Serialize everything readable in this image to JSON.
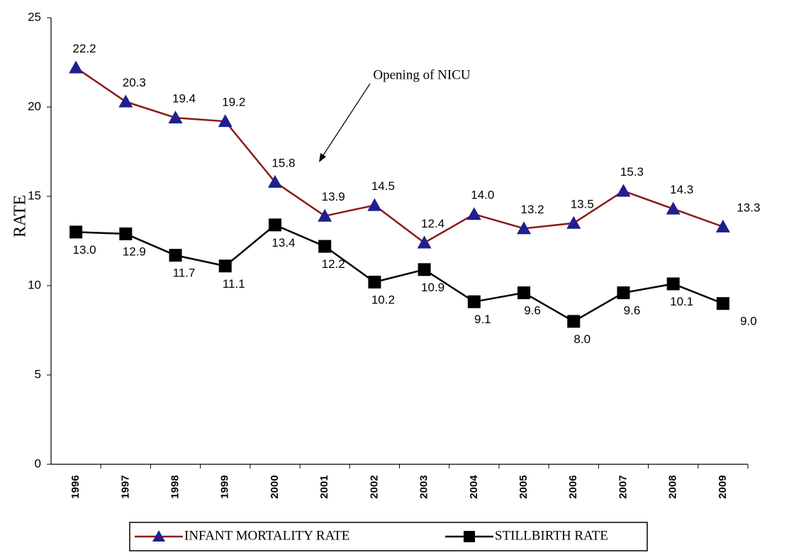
{
  "chart_data": {
    "type": "line",
    "y_label": "RATE",
    "annotation": "Opening of NICU",
    "categories": [
      "1996",
      "1997",
      "1998",
      "1999",
      "2000",
      "2001",
      "2002",
      "2003",
      "2004",
      "2005",
      "2006",
      "2007",
      "2008",
      "2009"
    ],
    "series": [
      {
        "name": "INFANT MORTALITY RATE",
        "color": "#8b1a1a",
        "marker_color": "#1f1f8f",
        "marker": "triangle",
        "values": [
          22.2,
          20.3,
          19.4,
          19.2,
          15.8,
          13.9,
          14.5,
          12.4,
          14.0,
          13.2,
          13.5,
          15.3,
          14.3,
          13.3
        ],
        "value_labels": [
          "22.2",
          "20.3",
          "19.4",
          "19.2",
          "15.8",
          "13.9",
          "14.5",
          "12.4",
          "14.0",
          "13.2",
          "13.5",
          "15.3",
          "14.3",
          "13.3"
        ]
      },
      {
        "name": "STILLBIRTH  RATE",
        "color": "#000000",
        "marker_color": "#000000",
        "marker": "square",
        "values": [
          13.0,
          12.9,
          11.7,
          11.1,
          13.4,
          12.2,
          10.2,
          10.9,
          9.1,
          9.6,
          8.0,
          9.6,
          10.1,
          9.0
        ],
        "value_labels": [
          "13.0",
          "12.9",
          "11.7",
          "11.1",
          "13.4",
          "12.2",
          "10.2",
          "10.9",
          "9.1",
          "9.6",
          "8.0",
          "9.6",
          "10.1",
          "9.0"
        ]
      }
    ],
    "ylim": [
      0,
      25
    ],
    "yticks": [
      0,
      5,
      10,
      15,
      20,
      25
    ],
    "grid": false
  }
}
